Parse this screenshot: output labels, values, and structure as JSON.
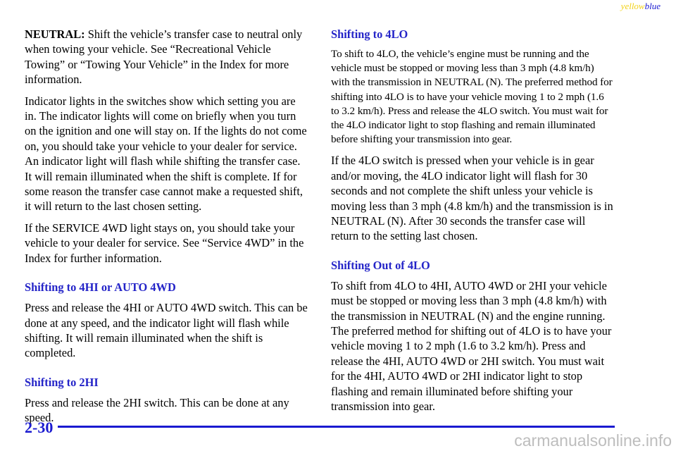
{
  "header": {
    "yellow": "yellow",
    "blue": "blue"
  },
  "left": {
    "neutral": {
      "label": "NEUTRAL:",
      "text": "Shift the vehicle’s transfer case to neutral only when towing your vehicle. See “Recreational Vehicle Towing” or “Towing Your Vehicle” in the Index for more information."
    },
    "paragraphs": [
      "Indicator lights in the switches show which setting you are in. The indicator lights will come on briefly when you turn on the ignition and one will stay on. If the lights do not come on, you should take your vehicle to your dealer for service. An indicator light will flash while shifting the transfer case. It will remain illuminated when the shift is complete. If for some reason the transfer case cannot make a requested shift, it will return to the last chosen setting.",
      "If the SERVICE 4WD light stays on, you should take your vehicle to your dealer for service. See “Service 4WD” in the Index for further information."
    ],
    "sections": [
      {
        "heading": "Shifting to 4HI or AUTO 4WD",
        "text": "Press and release the 4HI or AUTO 4WD switch. This can be done at any speed, and the indicator light will flash while shifting. It will remain illuminated when the shift is completed."
      },
      {
        "heading": "Shifting to 2HI",
        "text": "Press and release the 2HI switch. This can be done at any speed."
      }
    ]
  },
  "right": {
    "sections": [
      {
        "heading": "Shifting to 4LO",
        "paragraphs": [
          "To shift to 4LO, the vehicle’s engine must be running and the vehicle must be stopped or moving less than 3 mph (4.8 km/h) with the transmission in NEUTRAL (N). The preferred method for shifting into 4LO is to have your vehicle moving 1 to 2 mph (1.6 to 3.2 km/h). Press and release the 4LO switch. You must wait for the 4LO indicator light to stop flashing and remain illuminated before shifting your transmission into gear.",
          "If the 4LO switch is pressed when your vehicle is in gear and/or moving, the 4LO indicator light will flash for 30 seconds and not complete the shift unless your vehicle is moving less than 3 mph (4.8 km/h) and the transmission is in NEUTRAL (N). After 30 seconds the transfer case will return to the setting last chosen."
        ]
      },
      {
        "heading": "Shifting Out of 4LO",
        "paragraphs": [
          "To shift from 4LO to 4HI, AUTO 4WD or 2HI your vehicle must be stopped or moving less than 3 mph (4.8 km/h) with the transmission in NEUTRAL (N) and the engine running. The preferred method for shifting out of 4LO is to have your vehicle moving 1 to 2 mph (1.6 to 3.2 km/h). Press and release the 4HI, AUTO 4WD or 2HI switch. You must wait for the 4HI, AUTO 4WD or 2HI indicator light to stop flashing and remain illuminated before shifting your transmission into gear."
        ]
      }
    ]
  },
  "footer": {
    "page": "2-30",
    "watermark": "carmanualsonline.info"
  }
}
